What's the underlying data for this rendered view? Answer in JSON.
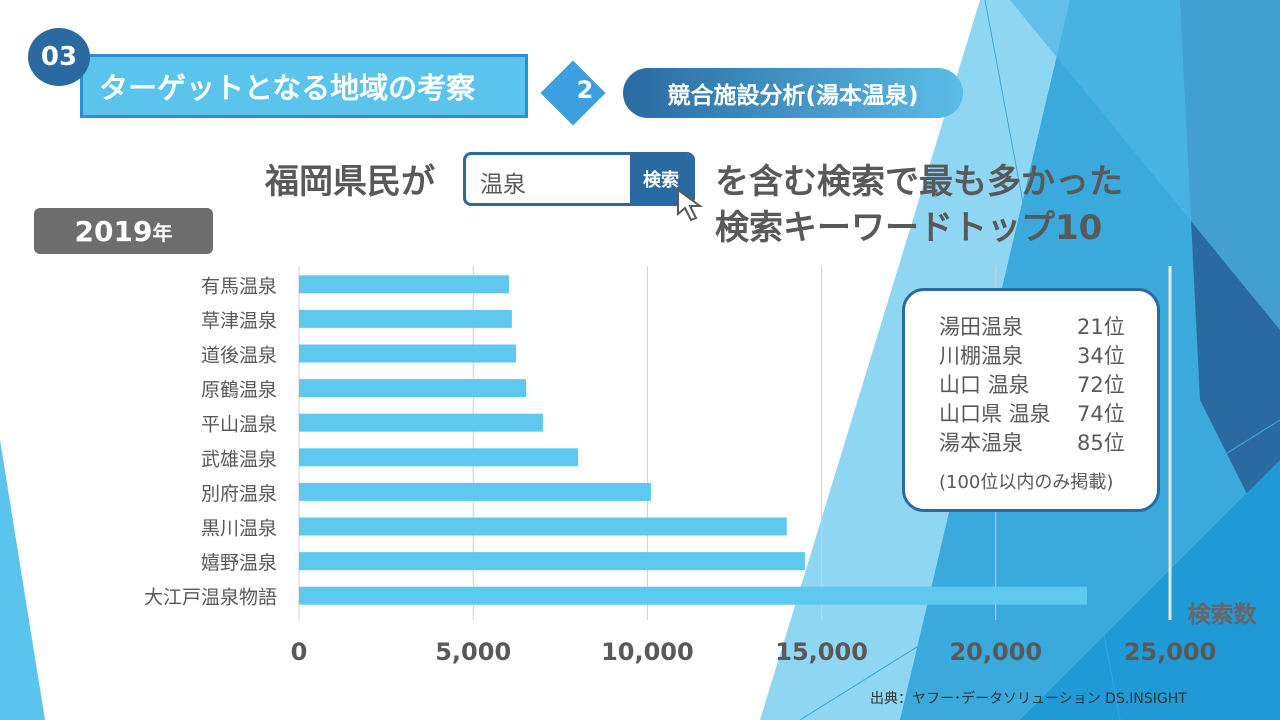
{
  "header": {
    "section_number": "03",
    "section_title": "ターゲットとなる地域の考察",
    "step_number": "2",
    "step_title": "競合施設分析(湯本温泉)"
  },
  "headline": {
    "prefix": "福岡県民が",
    "search_value": "温泉",
    "search_button": "検索",
    "line1_suffix": "を含む検索で最も多かった",
    "line2": "検索キーワードトップ10"
  },
  "year_badge": {
    "year": "2019",
    "unit": "年"
  },
  "chart_data": {
    "type": "bar",
    "orientation": "horizontal",
    "categories": [
      "有馬温泉",
      "草津温泉",
      "道後温泉",
      "原鶴温泉",
      "平山温泉",
      "武雄温泉",
      "別府温泉",
      "黒川温泉",
      "嬉野温泉",
      "大江戸温泉物語"
    ],
    "values": [
      6030,
      6110,
      6230,
      6520,
      7000,
      8010,
      10100,
      14000,
      14520,
      22620
    ],
    "xlim": [
      0,
      25000
    ],
    "xticks": [
      "0",
      "5,000",
      "10,000",
      "15,000",
      "20,000",
      "25,000"
    ],
    "xlabel": "検索数",
    "grid": true,
    "color": "#5ec8ee"
  },
  "ranking_box": {
    "rows": [
      {
        "name": "湯田温泉",
        "rank": "21位"
      },
      {
        "name": "川棚温泉",
        "rank": "34位"
      },
      {
        "name": "山口 温泉",
        "rank": "72位"
      },
      {
        "name": "山口県 温泉",
        "rank": "74位"
      },
      {
        "name": "湯本温泉",
        "rank": "85位"
      }
    ],
    "note": "(100位以内のみ掲載)"
  },
  "source": "出典：ヤフー･データソリューション DS.INSIGHT"
}
